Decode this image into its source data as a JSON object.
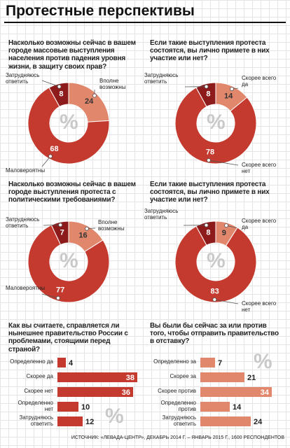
{
  "title": "Протестные перспективы",
  "symbol": "%",
  "source": "ИСТОЧНИК: «ЛЕВАДА-ЦЕНТР», ДЕКАБРЬ 2014 Г. – ЯНВАРЬ 2015 Г., 1600 РЕСПОНДЕНТОВ",
  "chart_data": [
    {
      "type": "donut",
      "title": "Насколько возможны сейчас в вашем городе массовые выступления населения против падения уровня жизни, в защиту своих прав?",
      "categories": [
        "Вполне возможны",
        "Маловероятны",
        "Затрудняюсь ответить"
      ],
      "values": [
        24,
        68,
        8
      ],
      "colors": [
        "#e0876c",
        "#c43a2e",
        "#8e1b1b"
      ]
    },
    {
      "type": "donut",
      "title": "Если такие выступления протеста состоятся, вы лично примете в них участие или нет?",
      "categories": [
        "Скорее всего да",
        "Скорее всего нет",
        "Затрудняюсь ответить"
      ],
      "values": [
        14,
        78,
        8
      ],
      "colors": [
        "#e0876c",
        "#c43a2e",
        "#8e1b1b"
      ]
    },
    {
      "type": "donut",
      "title": "Насколько возможны сейчас в вашем городе выступления протеста с политическими требованиями?",
      "categories": [
        "Вполне возможны",
        "Маловероятны",
        "Затрудняюсь ответить"
      ],
      "values": [
        16,
        77,
        7
      ],
      "colors": [
        "#e0876c",
        "#c43a2e",
        "#8e1b1b"
      ]
    },
    {
      "type": "donut",
      "title": "Если такие выступления протеста состоятся, вы лично примете в них участие или нет?",
      "categories": [
        "Скорее всего да",
        "Скорее всего нет",
        "Затрудняюсь ответить"
      ],
      "values": [
        9,
        83,
        8
      ],
      "colors": [
        "#e0876c",
        "#c43a2e",
        "#8e1b1b"
      ]
    },
    {
      "type": "bar",
      "title": "Как вы считаете, справляется ли нынешнее правительство России с проблемами, стоящими перед страной?",
      "categories": [
        "Определенно да",
        "Скорее да",
        "Скорее нет",
        "Определенно нет",
        "Затрудняюсь ответить"
      ],
      "values": [
        4,
        38,
        36,
        10,
        12
      ],
      "color": "#c43a2e"
    },
    {
      "type": "bar",
      "title": "Вы были бы сейчас за или против того, чтобы отправить правительство в отставку?",
      "categories": [
        "Определенно за",
        "Скорее за",
        "Скорее против",
        "Определенно против",
        "Затрудняюсь ответить"
      ],
      "values": [
        7,
        21,
        34,
        14,
        24
      ],
      "color": "#e0876c"
    }
  ]
}
